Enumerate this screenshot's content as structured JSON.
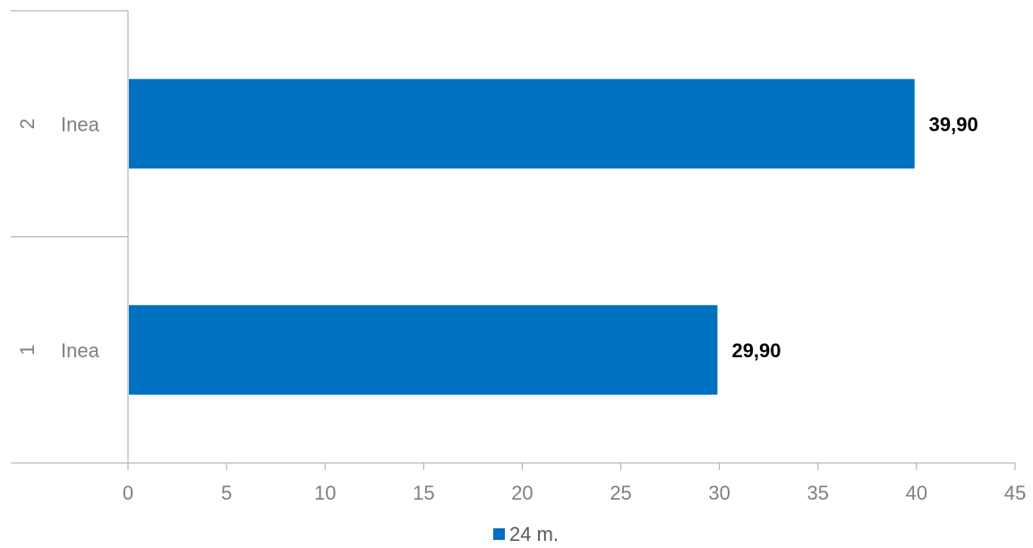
{
  "chart_data": {
    "type": "bar",
    "orientation": "horizontal",
    "categories": [
      {
        "number": "1",
        "name": "Inea"
      },
      {
        "number": "2",
        "name": "Inea"
      }
    ],
    "series": [
      {
        "name": "24 m.",
        "color": "#0070c0",
        "values": [
          29.9,
          39.9
        ],
        "labels": [
          "29,90",
          "39,90"
        ]
      }
    ],
    "x_ticks": [
      "0",
      "5",
      "10",
      "15",
      "20",
      "25",
      "30",
      "35",
      "40",
      "45"
    ],
    "xlim": [
      0,
      45
    ],
    "grid": false,
    "legend_position": "bottom-center"
  }
}
